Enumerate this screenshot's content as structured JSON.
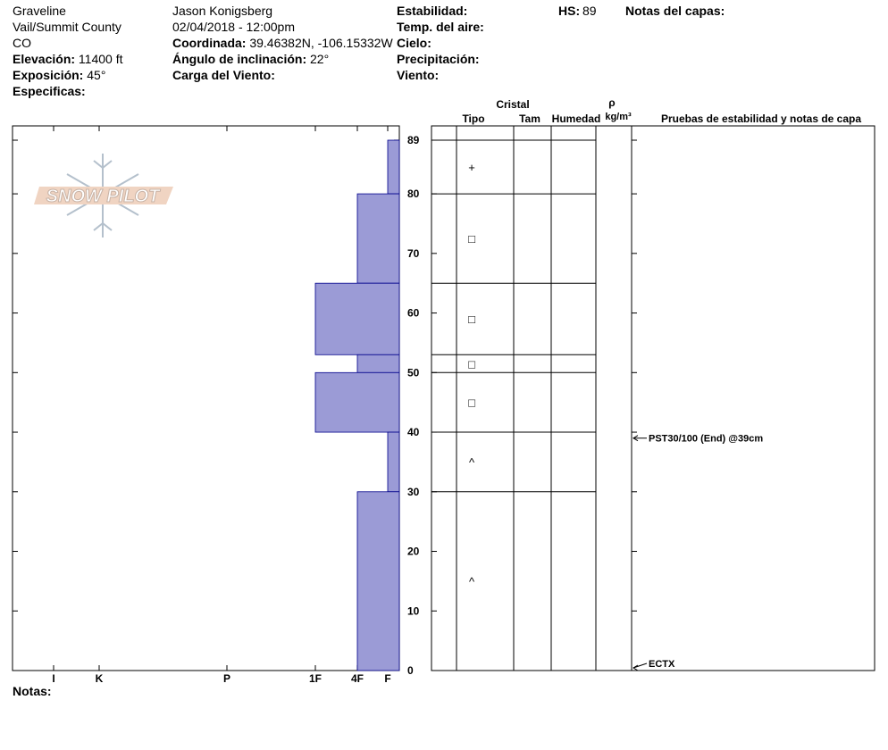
{
  "header": {
    "columns": [
      [
        {
          "value": "Graveline"
        },
        {
          "value": "Vail/Summit County"
        },
        {
          "value": "CO"
        },
        {
          "label": "Elevación:",
          "value": "11400 ft"
        },
        {
          "label": "Exposición:",
          "value": "45°"
        },
        {
          "label": "Especificas:"
        }
      ],
      [
        {
          "value": "Jason Konigsberg"
        },
        {
          "value": "02/04/2018 - 12:00pm"
        },
        {
          "label": "Coordinada:",
          "value": "39.46382N, -106.15332W"
        },
        {
          "label": "Ángulo de inclinación:",
          "value": "22°"
        },
        {
          "label": "Carga del Viento:"
        }
      ],
      [
        {
          "label": "Estabilidad:"
        },
        {
          "label": "Temp. del aire:"
        },
        {
          "label": "Cielo:"
        },
        {
          "label": "Precipitación:"
        },
        {
          "label": "Viento:"
        }
      ]
    ],
    "hs_label": "HS:",
    "hs": 89,
    "layer_notes": "Notas del capas:",
    "notes": "Notas:"
  },
  "logo": "SNOW PILOT",
  "table_headers": {
    "crystal": "Cristal",
    "type": "Tipo",
    "size": "Tam",
    "moisture": "Humedad",
    "density_symbol": "ρ",
    "density_unit": "kg/m³",
    "tests": "Pruebas de estabilidad y notas de capa"
  },
  "profile": {
    "ylim": [
      0,
      91.4
    ],
    "yticks": [
      0,
      10,
      20,
      30,
      40,
      50,
      60,
      70,
      80,
      89
    ],
    "hardness_ticks": [
      "I",
      "K",
      "P",
      "1F",
      "4F",
      "F"
    ],
    "color": "#9b9bd6",
    "layers": [
      {
        "top": 89,
        "bottom": 80,
        "hardness": "F",
        "grain": "+"
      },
      {
        "top": 80,
        "bottom": 65,
        "hardness": "4F",
        "grain": "□"
      },
      {
        "top": 65,
        "bottom": 53,
        "hardness": "1F",
        "grain": "□"
      },
      {
        "top": 53,
        "bottom": 50,
        "hardness": "4F",
        "grain": "□"
      },
      {
        "top": 50,
        "bottom": 40,
        "hardness": "1F",
        "grain": "□"
      },
      {
        "top": 40,
        "bottom": 30,
        "hardness": "F",
        "grain": "^"
      },
      {
        "top": 30,
        "bottom": 0,
        "hardness": "4F",
        "grain": "^"
      }
    ],
    "tests": [
      {
        "text": "PST30/100 (End) @39cm",
        "depth": 39
      },
      {
        "text": "ECTX",
        "depth": 0
      }
    ]
  }
}
